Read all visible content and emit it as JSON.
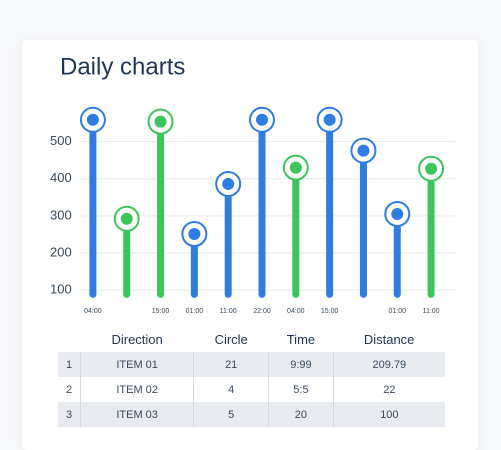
{
  "chart_data": {
    "type": "bar",
    "title": "Daily charts",
    "categories": [
      "04:00",
      null,
      "15:00",
      "01:00",
      "11:00",
      "22:00",
      "04:00",
      "15:00",
      null,
      "01:00",
      "11:00"
    ],
    "values": [
      559,
      292,
      554,
      251,
      386,
      559,
      430,
      559,
      476,
      305,
      427
    ],
    "colors": [
      "#2f7de1",
      "#3cc55a",
      "#3cc55a",
      "#2f7de1",
      "#2f7de1",
      "#2f7de1",
      "#3cc55a",
      "#2f7de1",
      "#2f7de1",
      "#2f7de1",
      "#3cc55a"
    ],
    "ylim": [
      80,
      600
    ],
    "yticks": [
      100,
      200,
      300,
      400,
      500
    ],
    "grid": true
  },
  "table": {
    "header": [
      "Direction",
      "Circle",
      "Time",
      "Distance"
    ],
    "rows": [
      [
        "1",
        "ITEM 01",
        "21",
        "9:99",
        "209.79"
      ],
      [
        "2",
        "ITEM 02",
        "4",
        "5:5",
        "22"
      ],
      [
        "3",
        "ITEM 03",
        "5",
        "20",
        "100"
      ]
    ]
  }
}
